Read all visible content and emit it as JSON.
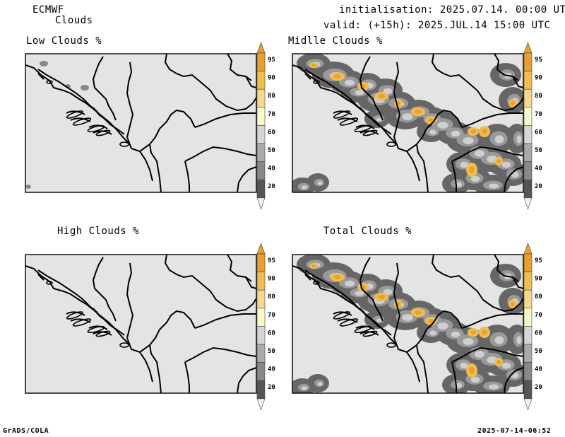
{
  "header": {
    "model": "ECMWF",
    "product": "Clouds",
    "initialisation": "initialisation: 2025.07.14. 00:00 UTC",
    "valid": "valid: (+15h): 2025.JUL.14 15:00 UTC"
  },
  "panels": [
    {
      "title": "Low Clouds %",
      "coverage": "low"
    },
    {
      "title": "Midlle Clouds %",
      "coverage": "heavy"
    },
    {
      "title": "High Clouds %",
      "coverage": "none"
    },
    {
      "title": "Total Clouds %",
      "coverage": "heavy"
    }
  ],
  "colorbar": {
    "labels": [
      "95",
      "90",
      "80",
      "70",
      "60",
      "50",
      "40",
      "20"
    ],
    "colors": [
      "#e8a030",
      "#f0be50",
      "#f5d890",
      "#f8f8c8",
      "#d6d6d6",
      "#aaaaaa",
      "#888888",
      "#555555"
    ],
    "top_color": "#e8a030",
    "bottom_color": "#f0f0f0"
  },
  "map_colors": {
    "land": "#e4e4e4",
    "border": "#000000"
  },
  "footer": {
    "left": "GrADS/COLA",
    "right": "2025-07-14-06:52"
  }
}
